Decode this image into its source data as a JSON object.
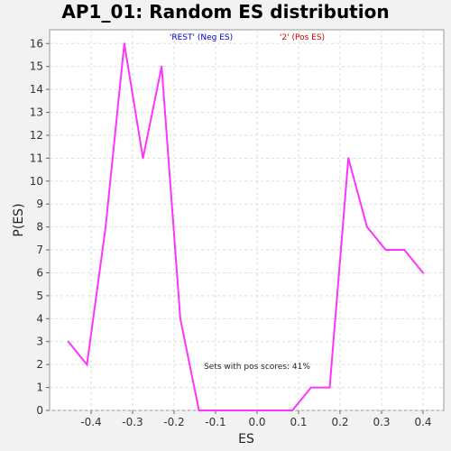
{
  "chart_data": {
    "type": "line",
    "title": "AP1_01: Random ES distribution",
    "xlabel": "ES",
    "ylabel": "P(ES)",
    "xlim": [
      -0.5,
      0.45
    ],
    "ylim": [
      0,
      16.6
    ],
    "x_ticks": [
      "-0.4",
      "-0.3",
      "-0.2",
      "-0.1",
      "0.0",
      "0.1",
      "0.2",
      "0.3",
      "0.4"
    ],
    "x_tick_values": [
      -0.4,
      -0.3,
      -0.2,
      -0.1,
      0.0,
      0.1,
      0.2,
      0.3,
      0.4
    ],
    "y_ticks": [
      "0",
      "1",
      "2",
      "3",
      "4",
      "5",
      "6",
      "7",
      "8",
      "9",
      "10",
      "11",
      "12",
      "13",
      "14",
      "15",
      "16"
    ],
    "y_tick_values": [
      0,
      1,
      2,
      3,
      4,
      5,
      6,
      7,
      8,
      9,
      10,
      11,
      12,
      13,
      14,
      15,
      16
    ],
    "grid": true,
    "legend": [
      {
        "label": "'REST' (Neg ES)",
        "color": "#0000cc"
      },
      {
        "label": "'2' (Pos ES)",
        "color": "#cc0000"
      }
    ],
    "annotation": "Sets with pos scores: 41%",
    "series": [
      {
        "color": "#ff33ff",
        "x": [
          -0.455,
          -0.41,
          -0.365,
          -0.32,
          -0.275,
          -0.23,
          -0.185,
          -0.14,
          -0.095,
          -0.05,
          -0.005,
          0.04,
          0.085,
          0.13,
          0.175,
          0.22,
          0.265,
          0.31,
          0.355,
          0.4
        ],
        "y": [
          3,
          2,
          8,
          16,
          11,
          15,
          4,
          0,
          0,
          0,
          0,
          0,
          0,
          1,
          1,
          11,
          8,
          7,
          7,
          6
        ]
      }
    ]
  }
}
